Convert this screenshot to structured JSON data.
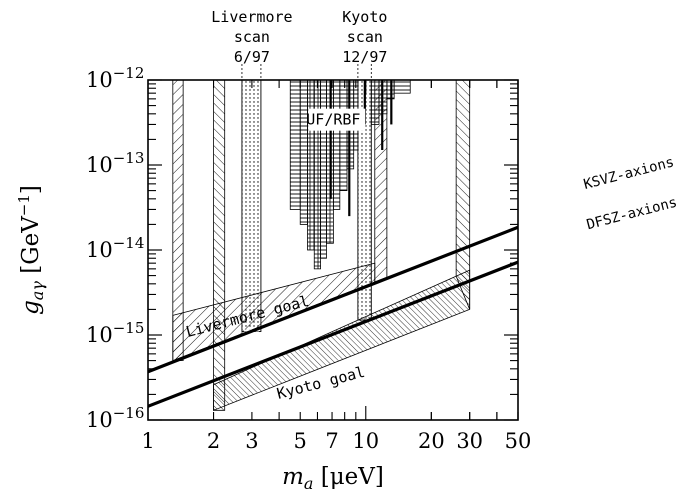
{
  "chart_data": {
    "type": "line",
    "xscale": "log",
    "yscale": "log",
    "xlim": [
      1,
      50
    ],
    "ylim": [
      1e-16,
      1e-12
    ],
    "xlabel": {
      "base": "m",
      "sub": "a",
      "unit": "[μeV]"
    },
    "ylabel": {
      "base": "g",
      "sub": "aγ",
      "unit": "[GeV",
      "unit_exp": "−1",
      "unit_close": "]"
    },
    "x_ticks": [
      {
        "value": 1,
        "label": "1"
      },
      {
        "value": 2,
        "label": "2"
      },
      {
        "value": 5,
        "label": "5"
      },
      {
        "value": 10,
        "label": "10"
      },
      {
        "value": 20,
        "label": "20"
      },
      {
        "value": 50,
        "label": "50"
      }
    ],
    "x_ticks_small": [
      {
        "value": 3,
        "label": "3"
      },
      {
        "value": 7,
        "label": "7"
      },
      {
        "value": 30,
        "label": "30"
      }
    ],
    "y_ticks": [
      {
        "exp": -16,
        "base": "10",
        "sup": "−16"
      },
      {
        "exp": -15,
        "base": "10",
        "sup": "−15"
      },
      {
        "exp": -14,
        "base": "10",
        "sup": "−14"
      },
      {
        "exp": -13,
        "base": "10",
        "sup": "−13"
      },
      {
        "exp": -12,
        "base": "10",
        "sup": "−12"
      }
    ],
    "series": [
      {
        "name": "KSVZ-axions",
        "x": [
          1,
          50
        ],
        "y": [
          3.7e-16,
          1.85e-14
        ]
      },
      {
        "name": "DFSZ-axions",
        "x": [
          1,
          50
        ],
        "y": [
          1.45e-16,
          7.2e-15
        ]
      }
    ],
    "regions": [
      {
        "label": "Livermore goal",
        "x": [
          1.3,
          11
        ],
        "y_lower": [
          5e-16,
          4.2e-15
        ],
        "y_upper": [
          1.7e-15,
          7e-15
        ]
      },
      {
        "label": "Kyoto goal",
        "x": [
          2,
          30
        ],
        "y_lower": [
          1.3e-16,
          2e-15
        ],
        "y_upper": [
          2.6e-16,
          5.8e-15
        ]
      },
      {
        "label": "UF/RBF",
        "x": [
          4.5,
          16
        ]
      },
      {
        "label": "Livermore scan 6/97",
        "x": [
          2.7,
          3.3
        ]
      },
      {
        "label": "Kyoto scan 12/97",
        "x": [
          9.2,
          10.6
        ]
      }
    ],
    "annotations": {
      "livermore_scan": [
        "Livermore",
        "scan",
        "6/97"
      ],
      "kyoto_scan": [
        "Kyoto",
        "scan",
        "12/97"
      ],
      "uf_rbf": "UF/RBF",
      "livermore_goal": "Livermore goal",
      "kyoto_goal": "Kyoto goal",
      "ksvz": "KSVZ-axions",
      "dfsz": "DFSZ-axions"
    }
  }
}
